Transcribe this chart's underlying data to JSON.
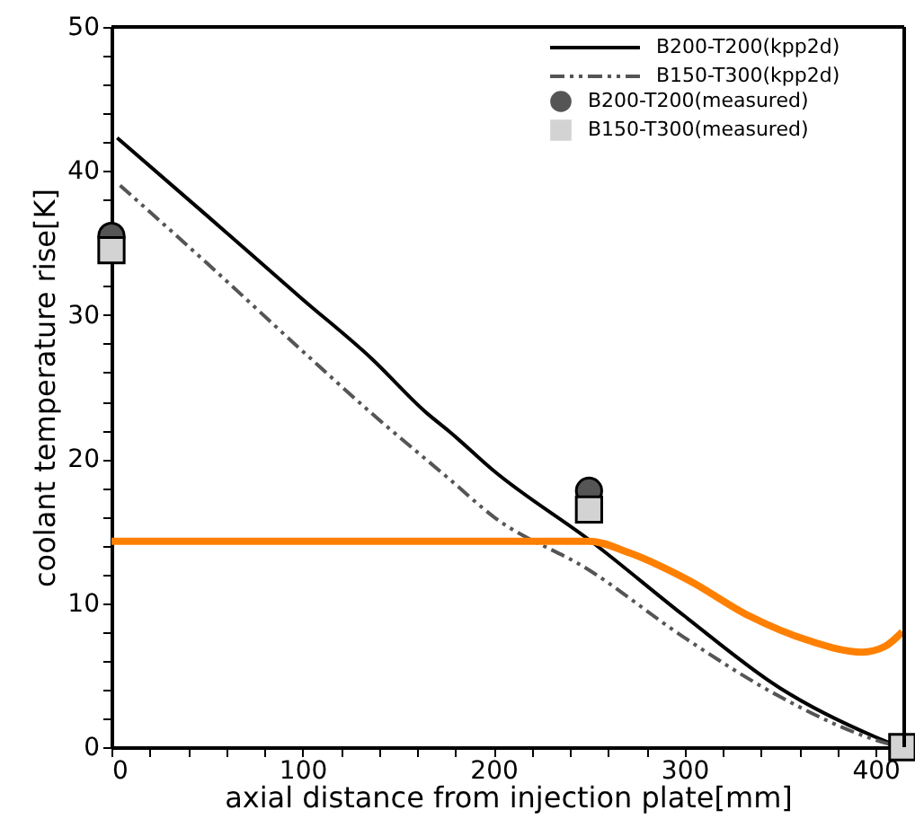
{
  "chart_data": {
    "type": "line",
    "xlabel": "axial distance from injection plate[mm]",
    "ylabel": "coolant temperature rise[K]",
    "xlim": [
      0,
      415
    ],
    "ylim": [
      0,
      50
    ],
    "xticks": [
      0,
      {
        "value": 20,
        "label": null
      },
      {
        "value": 40,
        "label": null
      },
      {
        "value": 60,
        "label": null
      },
      {
        "value": 80,
        "label": null
      },
      100,
      {
        "value": 120,
        "label": null
      },
      {
        "value": 140,
        "label": null
      },
      {
        "value": 160,
        "label": null
      },
      {
        "value": 180,
        "label": null
      },
      200,
      {
        "value": 220,
        "label": null
      },
      {
        "value": 240,
        "label": null
      },
      {
        "value": 260,
        "label": null
      },
      {
        "value": 280,
        "label": null
      },
      300,
      {
        "value": 320,
        "label": null
      },
      {
        "value": 340,
        "label": null
      },
      {
        "value": 360,
        "label": null
      },
      {
        "value": 380,
        "label": null
      },
      400
    ],
    "yticks": [
      0,
      {
        "value": 2,
        "label": null
      },
      {
        "value": 4,
        "label": null
      },
      {
        "value": 6,
        "label": null
      },
      {
        "value": 8,
        "label": null
      },
      10,
      {
        "value": 12,
        "label": null
      },
      {
        "value": 14,
        "label": null
      },
      {
        "value": 16,
        "label": null
      },
      {
        "value": 18,
        "label": null
      },
      20,
      {
        "value": 22,
        "label": null
      },
      {
        "value": 24,
        "label": null
      },
      {
        "value": 26,
        "label": null
      },
      {
        "value": 28,
        "label": null
      },
      30,
      {
        "value": 32,
        "label": null
      },
      {
        "value": 34,
        "label": null
      },
      {
        "value": 36,
        "label": null
      },
      {
        "value": 38,
        "label": null
      },
      40,
      {
        "value": 42,
        "label": null
      },
      {
        "value": 44,
        "label": null
      },
      {
        "value": 46,
        "label": null
      },
      {
        "value": 48,
        "label": null
      },
      50
    ],
    "grid": false,
    "legend": "top right",
    "series": [
      {
        "name": "B200-T200(kpp2d)",
        "line_style": "solid",
        "marker": "none",
        "color": "#000000",
        "x": [
          3,
          50,
          100,
          136,
          165,
          177,
          200,
          252,
          300,
          350,
          400,
          413
        ],
        "values": [
          42.3,
          36.9,
          31.1,
          27.0,
          23.2,
          21.9,
          19.2,
          14.2,
          9.1,
          4.1,
          0.7,
          0
        ]
      },
      {
        "name": "B150-T300(kpp2d)",
        "line_style": "dashed",
        "marker": "none",
        "color": "#555555",
        "x": [
          4.5,
          50,
          100,
          136,
          177,
          200,
          250,
          300,
          350,
          400,
          413
        ],
        "values": [
          39.0,
          33.6,
          27.5,
          23.2,
          18.6,
          16.0,
          12.3,
          7.6,
          3.5,
          0.5,
          0
        ]
      },
      {
        "line_style": "solid",
        "marker": "none",
        "color": "#ff8000",
        "x": [
          0,
          100,
          200,
          250,
          271,
          302,
          334,
          365,
          393,
          405,
          414
        ],
        "values": [
          14.3,
          14.3,
          14.3,
          14.3,
          13.5,
          11.6,
          9.1,
          7.4,
          6.6,
          7.0,
          8.0
        ]
      },
      {
        "name": "B200-T200(measured)",
        "type": "scatter",
        "marker": "circle",
        "color": "#555555",
        "x": [
          0,
          250
        ],
        "values": [
          35.5,
          17.8
        ]
      },
      {
        "name": "B150-T300(measured)",
        "type": "scatter",
        "marker": "square",
        "color": "#d3d3d3",
        "x": [
          0,
          250,
          414
        ],
        "values": [
          34.5,
          16.5,
          0
        ]
      }
    ]
  }
}
